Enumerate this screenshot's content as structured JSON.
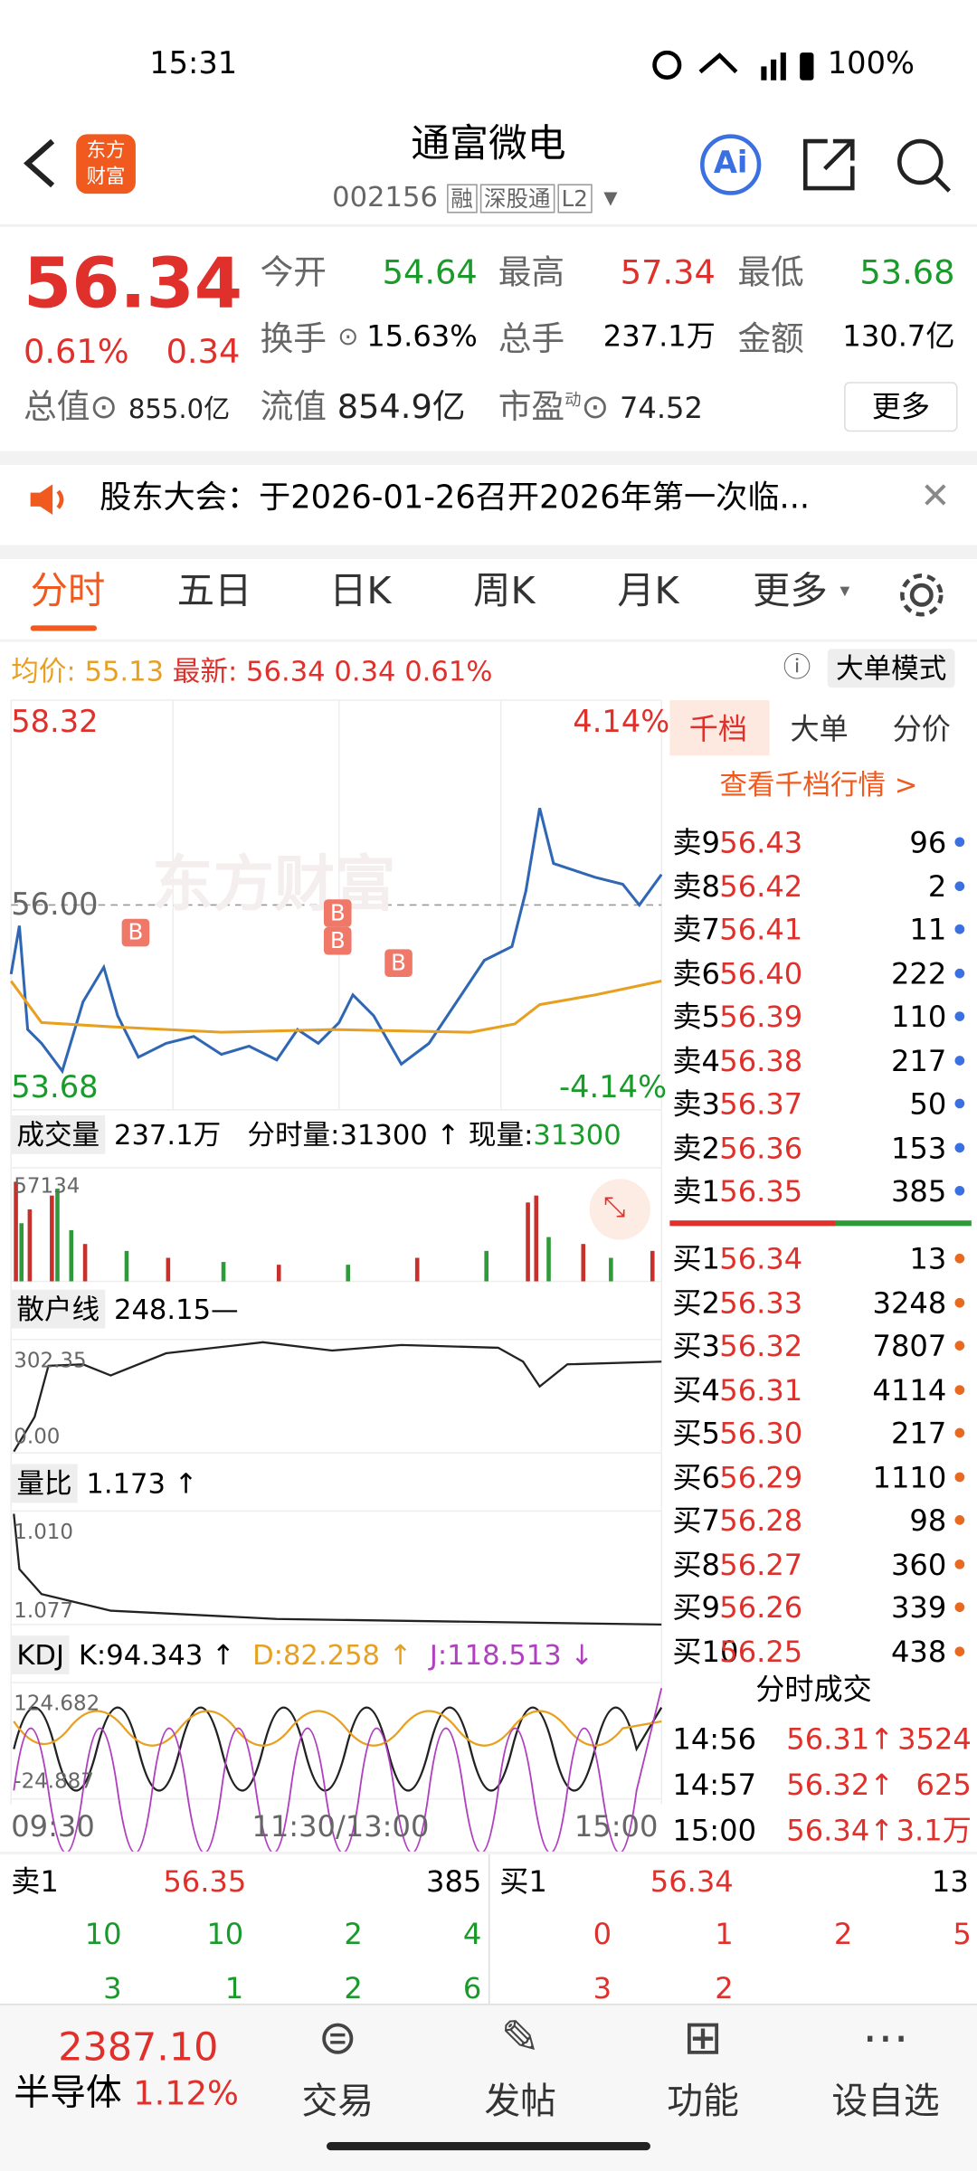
{
  "status": {
    "time": "15:31",
    "battery": "100%"
  },
  "header": {
    "logo": [
      "东方",
      "财富"
    ],
    "title": "通富微电",
    "code": "002156",
    "tags": [
      "融",
      "深股通",
      "L2"
    ],
    "ai": "Ai"
  },
  "quote": {
    "price": "56.34",
    "pct": "0.61%",
    "change": "0.34",
    "fields": [
      [
        "今开",
        "54.64"
      ],
      [
        "最高",
        "57.34"
      ],
      [
        "最低",
        "53.68"
      ],
      [
        "换手",
        "15.63%"
      ],
      [
        "总手",
        "237.1万"
      ],
      [
        "金额",
        "130.7亿"
      ]
    ],
    "total_value_label": "总值",
    "total_value": "855.0亿",
    "float_label": "流值",
    "float_value": "854.9亿",
    "pe_label": "市盈",
    "pe_sup": "动",
    "pe": "74.52",
    "more": "更多"
  },
  "notice": "股东大会：于2026-01-26召开2026年第一次临...",
  "tabs": [
    "分时",
    "五日",
    "日K",
    "周K",
    "月K",
    "更多"
  ],
  "infobar": {
    "avg_label": "均价:",
    "avg": "55.13",
    "latest_label": "最新:",
    "latest": "56.34",
    "change": "0.34",
    "pct": "0.61%",
    "mode": "大单模式"
  },
  "price_chart": {
    "ymax": "58.32",
    "ymin": "53.68",
    "pmax": "4.14%",
    "pmin": "-4.14%",
    "mid": "56.00",
    "watermark": "东方财富",
    "markers": [
      "B",
      "B",
      "B",
      "B"
    ]
  },
  "volume": {
    "label": "成交量",
    "total": "237.1万",
    "fsl": "分时量:31300 ↑",
    "now_label": "现量:",
    "now": "31300",
    "max": "57134"
  },
  "retail": {
    "label": "散户线",
    "value": "248.15—",
    "top": "302.35",
    "bottom": "0.00"
  },
  "ratio": {
    "label": "量比",
    "value": "1.173 ↑",
    "top": "1.010",
    "bottom": "1.077"
  },
  "kdj": {
    "label": "KDJ",
    "k": "K:94.343 ↑",
    "d": "D:82.258 ↑",
    "j": "J:118.513 ↓",
    "top": "124.682",
    "bottom": "-24.887"
  },
  "time_axis": [
    "09:30",
    "11:30/13:00",
    "15:00"
  ],
  "book": {
    "tabs": [
      "千档",
      "大单",
      "分价"
    ],
    "link": "查看千档行情 >",
    "asks": [
      [
        "卖9",
        "56.43",
        "96"
      ],
      [
        "卖8",
        "56.42",
        "2"
      ],
      [
        "卖7",
        "56.41",
        "11"
      ],
      [
        "卖6",
        "56.40",
        "222"
      ],
      [
        "卖5",
        "56.39",
        "110"
      ],
      [
        "卖4",
        "56.38",
        "217"
      ],
      [
        "卖3",
        "56.37",
        "50"
      ],
      [
        "卖2",
        "56.36",
        "153"
      ],
      [
        "卖1",
        "56.35",
        "385"
      ]
    ],
    "bids": [
      [
        "买1",
        "56.34",
        "13"
      ],
      [
        "买2",
        "56.33",
        "3248"
      ],
      [
        "买3",
        "56.32",
        "7807"
      ],
      [
        "买4",
        "56.31",
        "4114"
      ],
      [
        "买5",
        "56.30",
        "217"
      ],
      [
        "买6",
        "56.29",
        "1110"
      ],
      [
        "买7",
        "56.28",
        "98"
      ],
      [
        "买8",
        "56.27",
        "360"
      ],
      [
        "买9",
        "56.26",
        "339"
      ],
      [
        "买10",
        "56.25",
        "438"
      ]
    ],
    "trades_title": "分时成交",
    "trades": [
      [
        "14:56",
        "56.31↑",
        "3524"
      ],
      [
        "14:57",
        "56.32↑",
        "625"
      ],
      [
        "15:00",
        "56.34↑",
        "3.1万"
      ]
    ]
  },
  "queue": {
    "sell": [
      "卖1",
      "56.35",
      "385"
    ],
    "buy": [
      "买1",
      "56.34",
      "13"
    ],
    "sell_rows": [
      [
        "10",
        "10",
        "2",
        "4"
      ],
      [
        "3",
        "1",
        "2",
        "6"
      ]
    ],
    "buy_rows": [
      [
        "0",
        "1",
        "2",
        "5"
      ],
      [
        "3",
        "2"
      ]
    ]
  },
  "nav": {
    "index": "2387.10",
    "sector": "半导体",
    "pct": "1.12%",
    "items": [
      "交易",
      "发帖",
      "功能",
      "设自选"
    ]
  }
}
